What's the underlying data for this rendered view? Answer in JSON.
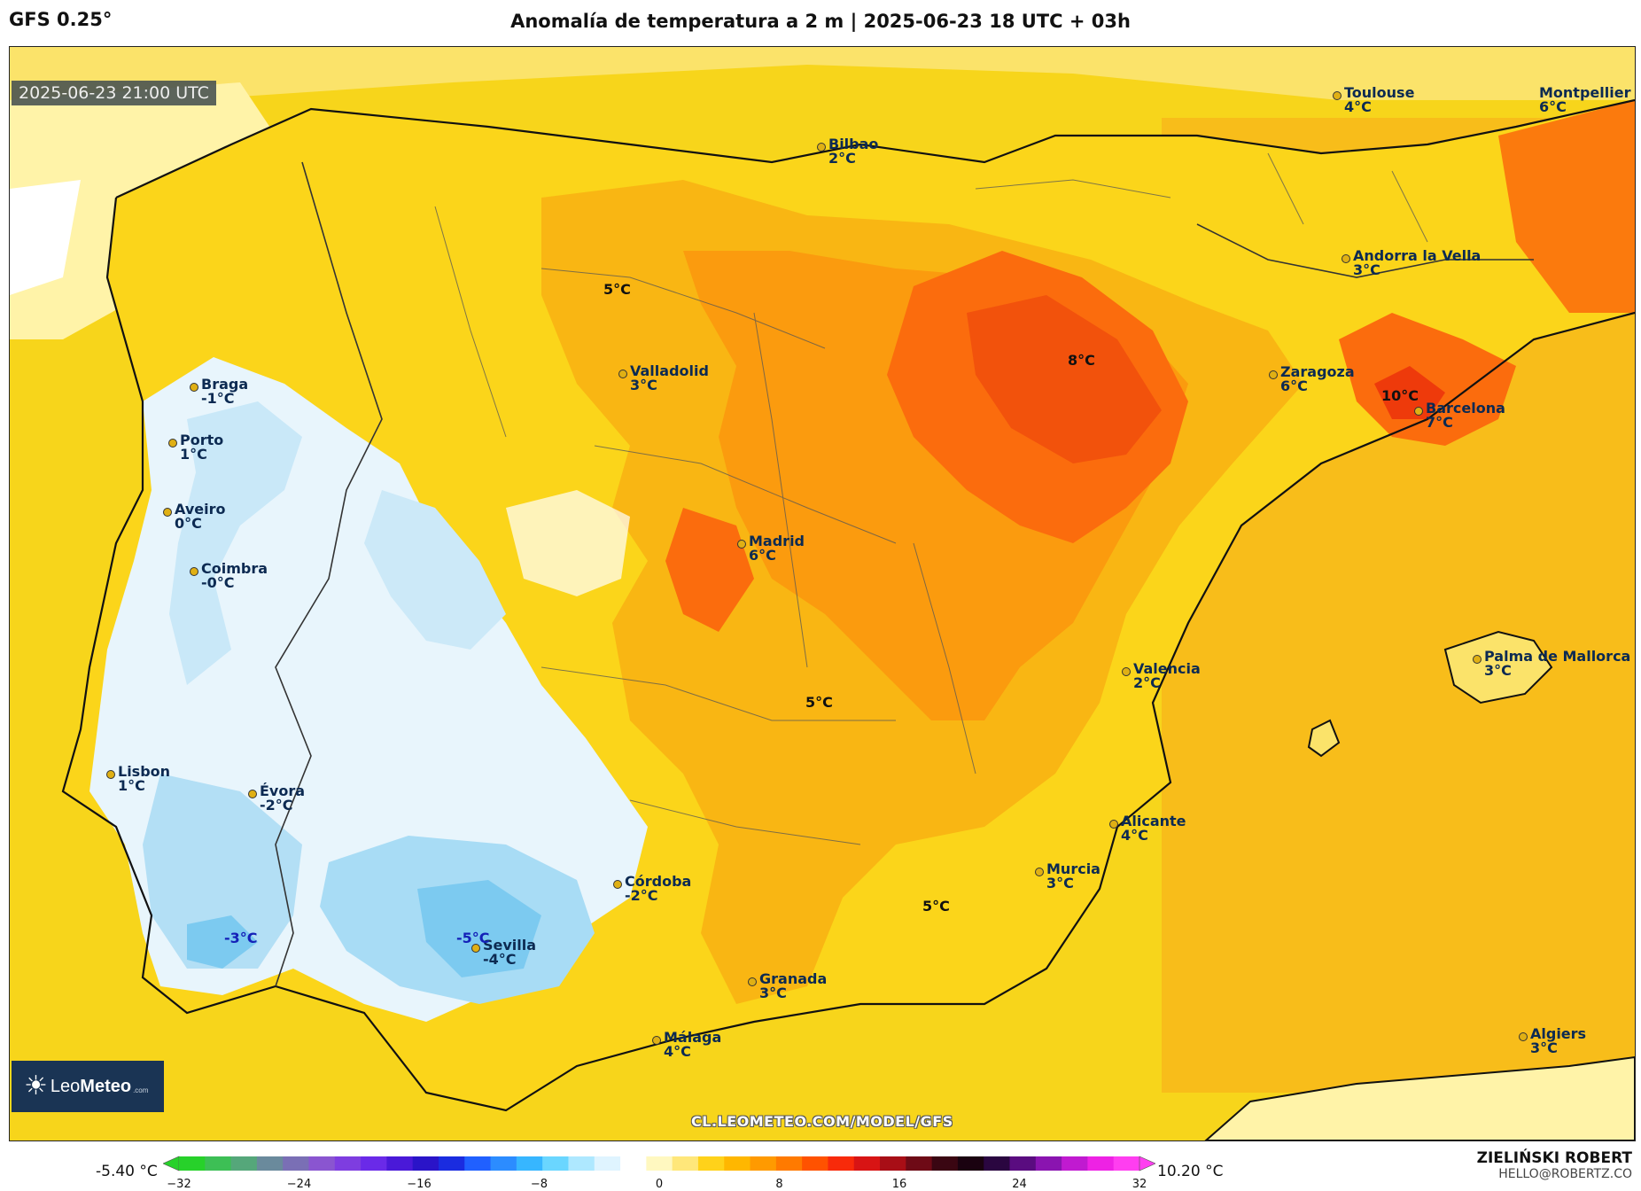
{
  "header": {
    "model": "GFS 0.25°",
    "title": "Anomalía de temperatura a 2 m | 2025-06-23 18 UTC + 03h"
  },
  "map": {
    "valid_time": "2025-06-23 21:00 UTC",
    "watermark": "CL.LEOMETEO.COM/MODEL/GFS",
    "logo": {
      "brand_light": "Leo",
      "brand_bold": "Meteo",
      "domain": ".com",
      "icon": "sun-icon"
    },
    "cities": [
      {
        "name": "Bilbao",
        "value": "2°C"
      },
      {
        "name": "Toulouse",
        "value": "4°C"
      },
      {
        "name": "Montpellier",
        "value": "6°C"
      },
      {
        "name": "Andorra la Vella",
        "value": "3°C"
      },
      {
        "name": "Valladolid",
        "value": "3°C"
      },
      {
        "name": "Zaragoza",
        "value": "6°C"
      },
      {
        "name": "Barcelona",
        "value": "7°C"
      },
      {
        "name": "Braga",
        "value": "-1°C"
      },
      {
        "name": "Porto",
        "value": "1°C"
      },
      {
        "name": "Aveiro",
        "value": "0°C"
      },
      {
        "name": "Coimbra",
        "value": "-0°C"
      },
      {
        "name": "Madrid",
        "value": "6°C"
      },
      {
        "name": "Palma de Mallorca",
        "value": "3°C"
      },
      {
        "name": "Valencia",
        "value": "2°C"
      },
      {
        "name": "Lisbon",
        "value": "1°C"
      },
      {
        "name": "Évora",
        "value": "-2°C"
      },
      {
        "name": "Alicante",
        "value": "4°C"
      },
      {
        "name": "Murcia",
        "value": "3°C"
      },
      {
        "name": "Córdoba",
        "value": "-2°C"
      },
      {
        "name": "Sevilla",
        "value": "-4°C"
      },
      {
        "name": "Granada",
        "value": "3°C"
      },
      {
        "name": "Málaga",
        "value": "4°C"
      },
      {
        "name": "Algiers",
        "value": "3°C"
      }
    ],
    "extremes": [
      "5°C",
      "8°C",
      "10°C",
      "5°C",
      "5°C",
      "-3°C",
      "-5°C"
    ]
  },
  "colorbar": {
    "min_label": "-5.40 °C",
    "max_label": "10.20 °C",
    "ticks": [
      "−32",
      "−24",
      "−16",
      "−8",
      "0",
      "8",
      "16",
      "24",
      "32"
    ],
    "range": [
      -32,
      32
    ],
    "colors": [
      "#27d12a",
      "#3dbf55",
      "#55a77a",
      "#6a8a9c",
      "#7a6fb5",
      "#8a55d0",
      "#7e3de0",
      "#6a2ae8",
      "#4a19d8",
      "#2a14c8",
      "#1a2ce0",
      "#2060ff",
      "#2c8cff",
      "#37b6ff",
      "#6ad6ff",
      "#aee8ff",
      "#dff4ff",
      "#ffffff",
      "#fff8c0",
      "#ffe77a",
      "#ffd21a",
      "#ffb700",
      "#ff9a00",
      "#ff7a00",
      "#ff5200",
      "#f82a0a",
      "#d81414",
      "#a80e16",
      "#6e0a16",
      "#3a0612",
      "#1a0210",
      "#2a0640",
      "#5a0c80",
      "#8a14b0",
      "#c01ad0",
      "#ee22e4",
      "#ff3ef0"
    ]
  }
}
